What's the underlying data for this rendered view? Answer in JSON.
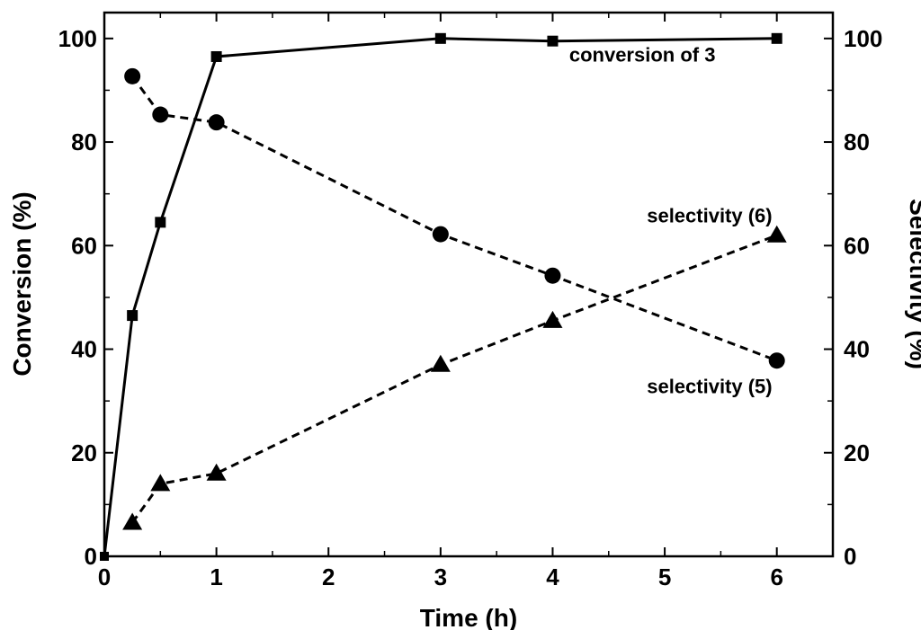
{
  "chart_data": {
    "type": "line",
    "xlabel": "Time (h)",
    "ylabel_left": "Conversion (%)",
    "ylabel_right": "Selectivity (%)",
    "xlim": [
      0,
      6.5
    ],
    "ylim": [
      0,
      105
    ],
    "x_ticks": [
      0,
      1,
      2,
      3,
      4,
      5,
      6
    ],
    "y_ticks": [
      0,
      20,
      40,
      60,
      80,
      100
    ],
    "grid": false,
    "series": [
      {
        "name": "conversion of 3",
        "axis": "left",
        "marker": "square",
        "line_style": "solid",
        "x": [
          0,
          0.25,
          0.5,
          1,
          3,
          4,
          6
        ],
        "y": [
          0,
          46.5,
          64.5,
          96.5,
          100,
          99.5,
          100
        ]
      },
      {
        "name": "selectivity (5)",
        "axis": "right",
        "marker": "circle",
        "line_style": "dashed",
        "x": [
          0.25,
          0.5,
          1,
          3,
          4,
          6
        ],
        "y": [
          92.7,
          85.3,
          83.8,
          62.2,
          54.2,
          37.8
        ]
      },
      {
        "name": "selectivity (6)",
        "axis": "right",
        "marker": "triangle",
        "line_style": "dashed",
        "x": [
          0.25,
          0.5,
          1,
          3,
          4,
          6
        ],
        "y": [
          6.5,
          14.0,
          16.0,
          37.0,
          45.5,
          62.0
        ]
      }
    ],
    "annotations": [
      {
        "text": "conversion of 3",
        "x": 4.8,
        "y": 95.5
      },
      {
        "text": "selectivity (6)",
        "x": 5.4,
        "y": 64.5
      },
      {
        "text": "selectivity (5)",
        "x": 5.4,
        "y": 31.5
      }
    ],
    "colors": {
      "line": "#000000",
      "background": "#ffffff"
    }
  }
}
